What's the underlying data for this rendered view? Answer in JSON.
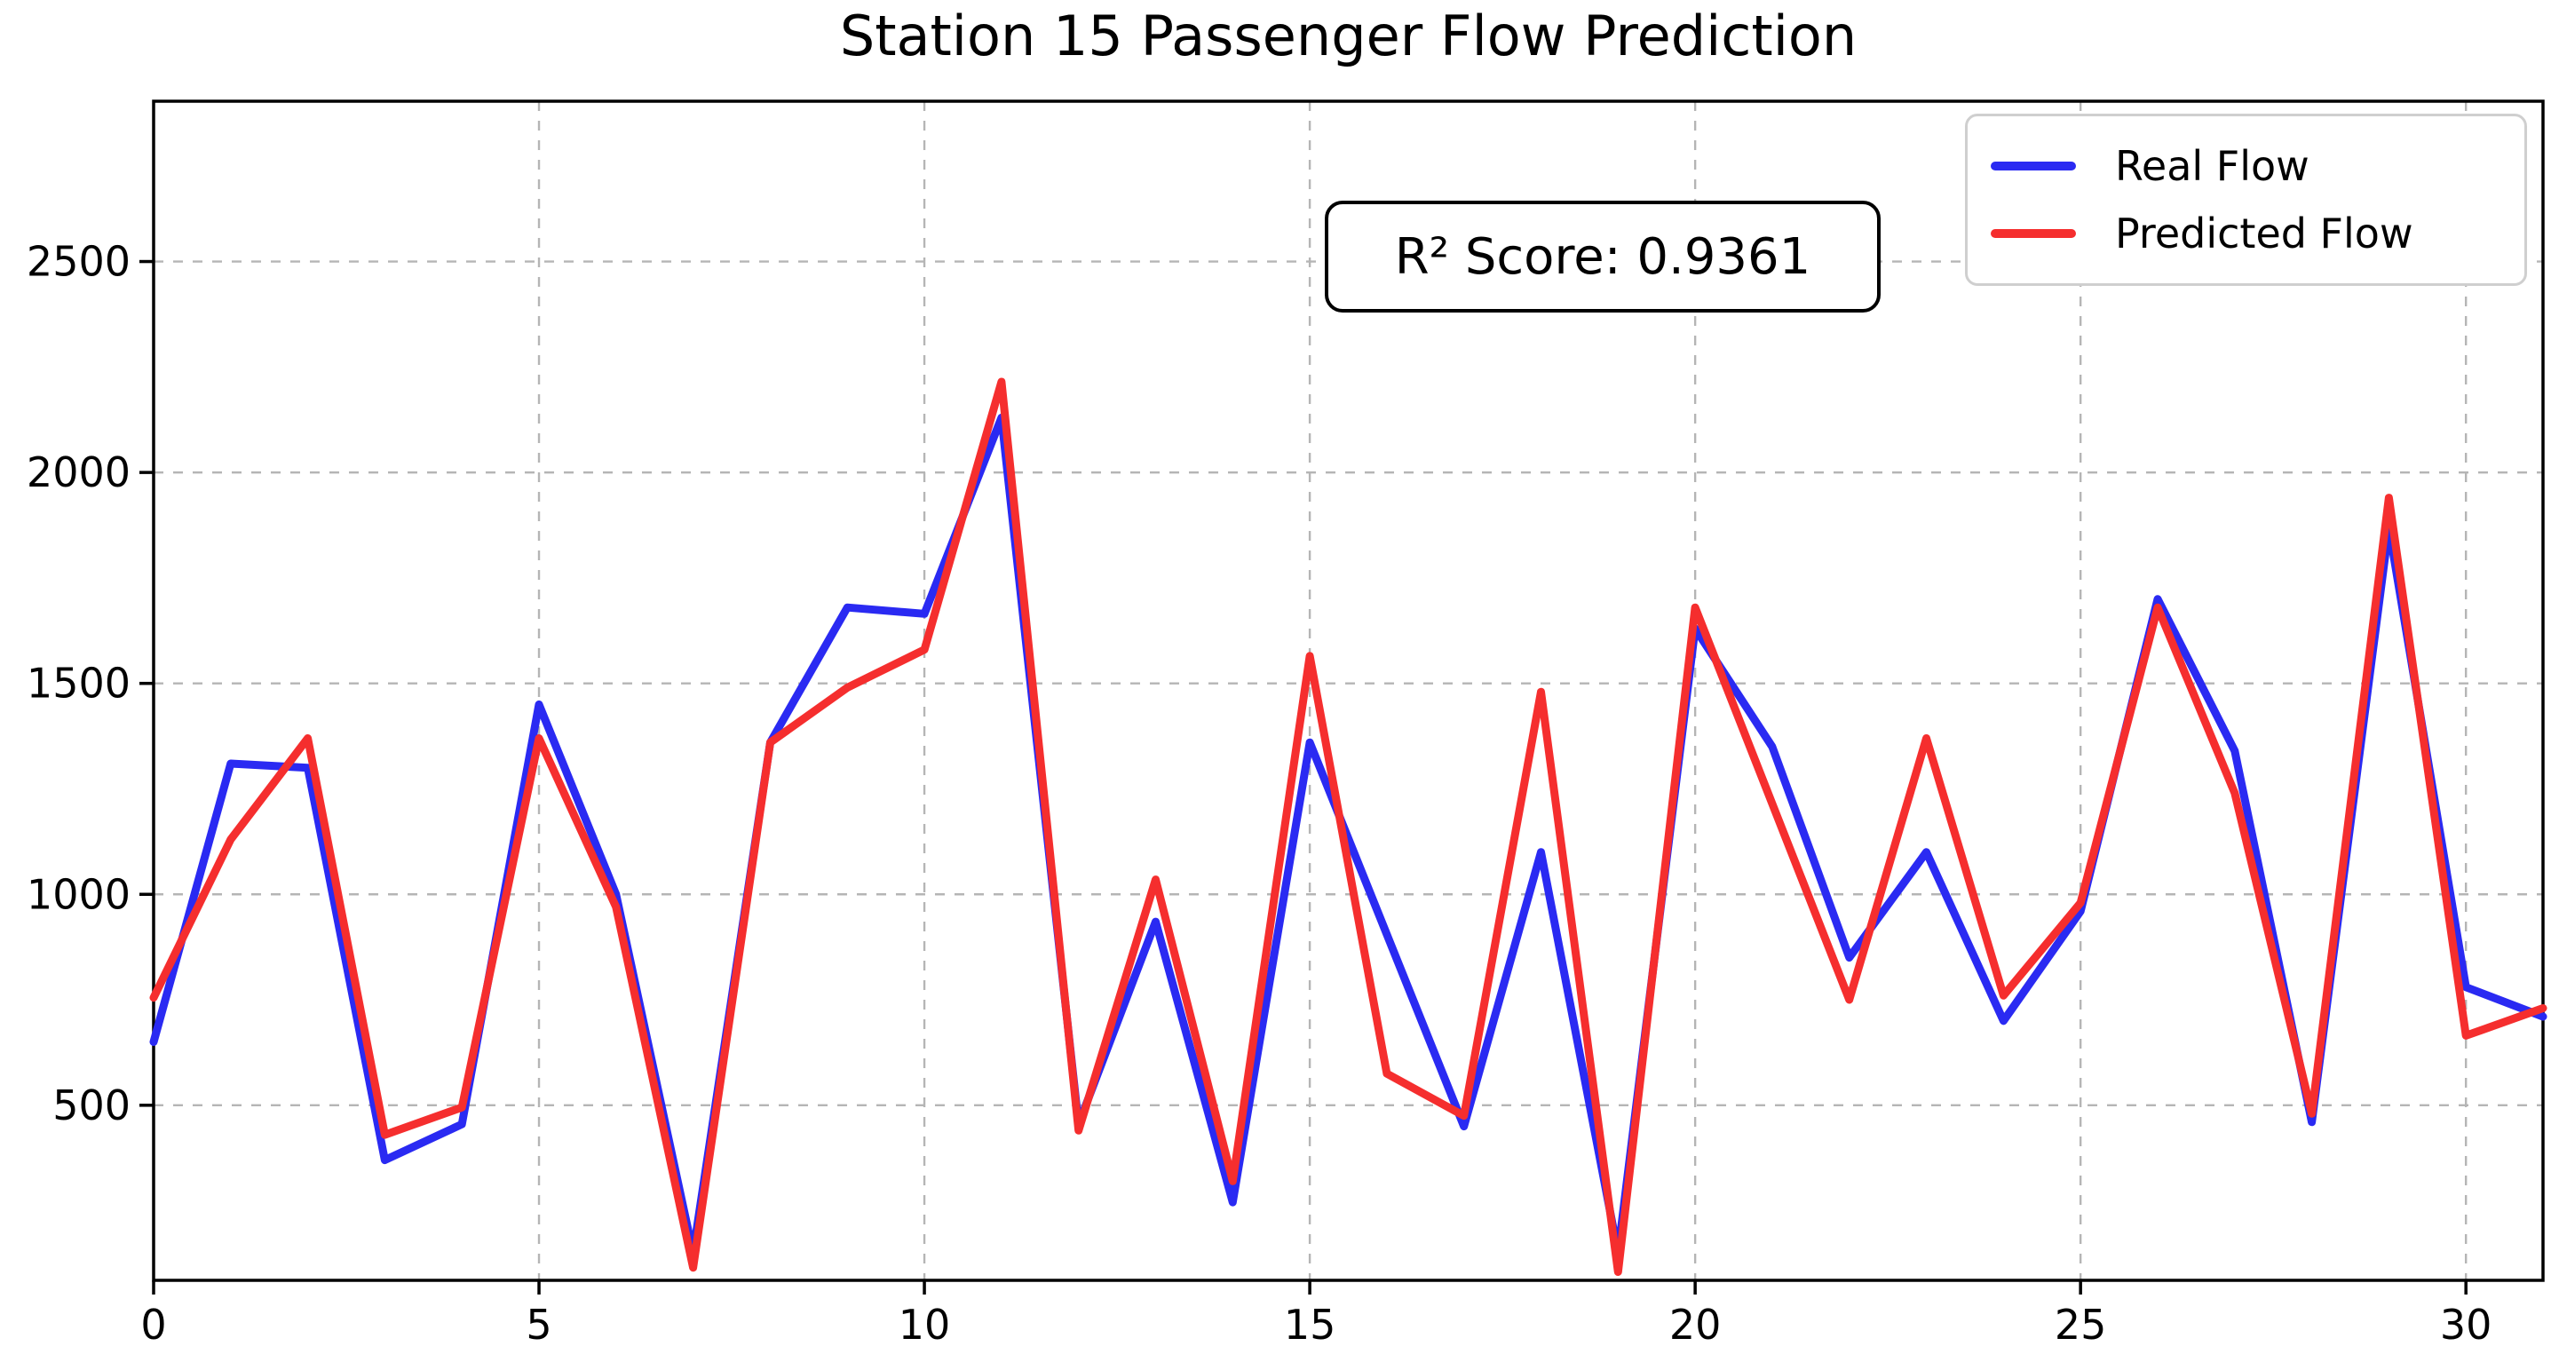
{
  "figure": {
    "title": "Station 15 Passenger Flow Prediction",
    "background": "#ffffff",
    "frame_color": "#000000",
    "grid_color": "#b5b5b5",
    "tick_label_color": "#000000"
  },
  "annotation_box": {
    "text": "R² Score: 0.9361"
  },
  "legend": {
    "position": "upper right",
    "entries": [
      {
        "label": "Real Flow",
        "color": "#2a2af2"
      },
      {
        "label": "Predicted Flow",
        "color": "#f52e2e"
      }
    ]
  },
  "chart_data": {
    "type": "line",
    "title": "Station 15 Passenger Flow Prediction",
    "xlabel": "",
    "ylabel": "",
    "xlim": [
      0,
      31
    ],
    "ylim": [
      85,
      2880
    ],
    "xticks": [
      0,
      5,
      10,
      15,
      20,
      25,
      30
    ],
    "yticks": [
      500,
      1000,
      1500,
      2000,
      2500
    ],
    "grid": true,
    "grid_style": "dashed",
    "legend_position": "upper right",
    "annotation": "R² Score: 0.9361",
    "x": [
      0,
      1,
      2,
      3,
      4,
      5,
      6,
      7,
      8,
      9,
      10,
      11,
      12,
      13,
      14,
      15,
      16,
      17,
      18,
      19,
      20,
      21,
      22,
      23,
      24,
      25,
      26,
      27,
      28,
      29,
      30,
      31
    ],
    "series": [
      {
        "name": "Real Flow",
        "color": "#2a2af2",
        "values": [
          650,
          1310,
          1300,
          370,
          455,
          1450,
          1000,
          150,
          1360,
          1680,
          1665,
          2130,
          455,
          935,
          270,
          1360,
          905,
          450,
          1100,
          150,
          1630,
          1350,
          850,
          1100,
          700,
          960,
          1700,
          1340,
          460,
          1870,
          780,
          710
        ]
      },
      {
        "name": "Predicted Flow",
        "color": "#f52e2e",
        "values": [
          755,
          1130,
          1370,
          430,
          495,
          1370,
          970,
          115,
          1360,
          1490,
          1580,
          2215,
          440,
          1035,
          320,
          1565,
          575,
          475,
          1480,
          105,
          1680,
          1215,
          750,
          1370,
          760,
          980,
          1680,
          1240,
          480,
          1940,
          665,
          730
        ]
      }
    ]
  }
}
